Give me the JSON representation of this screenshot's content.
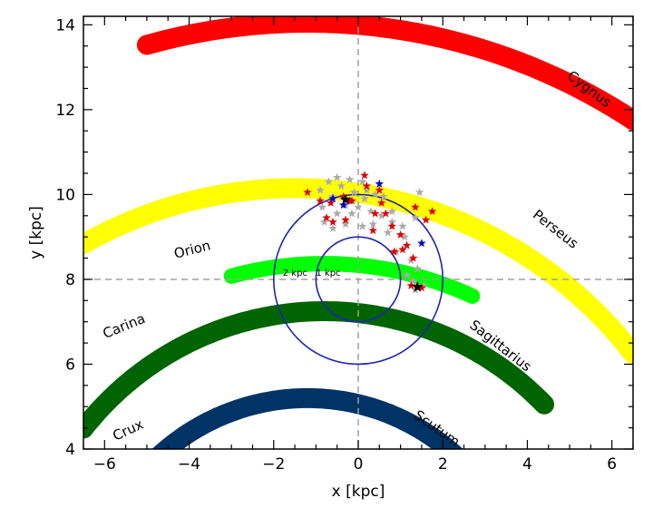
{
  "chart_data": {
    "type": "scatter",
    "xlabel": "x [kpc]",
    "ylabel": "y [kpc]",
    "xlim": [
      -6.5,
      6.5
    ],
    "ylim": [
      4,
      14.2
    ],
    "xticks": [
      -6,
      -4,
      -2,
      0,
      2,
      4,
      6
    ],
    "yticks": [
      4,
      6,
      8,
      10,
      12,
      14
    ],
    "grid": false,
    "sun": {
      "x": 0,
      "y": 8.0
    },
    "reference_lines": {
      "x": 0,
      "y": 8.0,
      "style": "dashed",
      "color": "#a0a0a0"
    },
    "circles": [
      {
        "label": "1 kpc",
        "radius_kpc": 1,
        "color": "#1f22b4"
      },
      {
        "label": "2 kpc",
        "radius_kpc": 2,
        "color": "#1f22b4"
      }
    ],
    "spiral_arms": [
      {
        "name": "Cygnus",
        "color": "#ff0000",
        "center": [
          -1.2,
          0
        ],
        "radius": 14.05,
        "x_from": -5.0,
        "x_to": 6.5,
        "label_x": 5.4,
        "label_y": 12.4,
        "label_angle": 37
      },
      {
        "name": "Perseus",
        "color": "#ffff00",
        "center": [
          -1.5,
          0
        ],
        "radius": 10.15,
        "x_from": -6.5,
        "x_to": 6.5,
        "label_x": 4.6,
        "label_y": 9.1,
        "label_angle": 38
      },
      {
        "name": "Orion",
        "color": "#00ff00",
        "center": [
          -0.8,
          0
        ],
        "radius": 8.37,
        "x_from": -3.0,
        "x_to": 2.7,
        "label_x": -3.9,
        "label_y": 8.6,
        "label_angle": -14
      },
      {
        "name": "Sagittarius",
        "color": "#006400",
        "center": [
          -0.8,
          0
        ],
        "radius": 7.25,
        "x_from": -6.5,
        "x_to": 4.4,
        "label_x": 3.3,
        "label_y": 6.35,
        "label_angle": 38
      },
      {
        "name": "Carina",
        "color": "#006400",
        "center": [
          -0.8,
          0
        ],
        "radius": 7.25,
        "x_from": -6.5,
        "x_to": 4.4,
        "label_x": -5.5,
        "label_y": 6.8,
        "label_angle": -22,
        "label_only": true
      },
      {
        "name": "Scutum",
        "color": "#003366",
        "center": [
          -1.2,
          0
        ],
        "radius": 5.2,
        "x_from": -4.9,
        "x_to": 2.3,
        "label_x": 1.8,
        "label_y": 4.4,
        "label_angle": 35
      },
      {
        "name": "Crux",
        "color": "#003366",
        "center": [
          -1.2,
          0
        ],
        "radius": 5.2,
        "x_from": -4.9,
        "x_to": 2.3,
        "label_x": -5.4,
        "label_y": 4.35,
        "label_angle": -25,
        "label_only": true
      }
    ],
    "series": [
      {
        "marker": "star",
        "color": "#aaaaaa",
        "points": [
          [
            -0.7,
            10.3
          ],
          [
            -0.5,
            10.4
          ],
          [
            -0.2,
            10.35
          ],
          [
            0.1,
            10.3
          ],
          [
            -0.4,
            10.2
          ],
          [
            -0.9,
            10.1
          ],
          [
            -0.6,
            9.95
          ],
          [
            -0.1,
            10.05
          ],
          [
            0.2,
            10.1
          ],
          [
            0.4,
            10.0
          ],
          [
            0.6,
            9.95
          ],
          [
            -0.3,
            9.75
          ],
          [
            0.0,
            9.7
          ],
          [
            0.3,
            9.6
          ],
          [
            0.55,
            9.5
          ],
          [
            -0.5,
            9.55
          ],
          [
            -0.8,
            9.35
          ],
          [
            -0.3,
            9.3
          ],
          [
            0.1,
            9.25
          ],
          [
            0.35,
            9.3
          ],
          [
            0.8,
            9.35
          ],
          [
            1.05,
            9.25
          ],
          [
            0.8,
            9.6
          ],
          [
            1.35,
            9.45
          ],
          [
            1.45,
            10.05
          ],
          [
            1.1,
            9.0
          ],
          [
            0.7,
            9.1
          ],
          [
            0.9,
            8.65
          ],
          [
            1.25,
            8.45
          ],
          [
            1.4,
            8.25
          ],
          [
            1.15,
            8.1
          ],
          [
            1.3,
            7.95
          ],
          [
            1.55,
            7.85
          ],
          [
            1.35,
            7.75
          ],
          [
            -0.85,
            9.7
          ],
          [
            0.15,
            9.9
          ],
          [
            -0.15,
            9.55
          ],
          [
            -0.6,
            9.2
          ]
        ]
      },
      {
        "marker": "star",
        "color": "#dd0000",
        "points": [
          [
            -1.2,
            10.05
          ],
          [
            -0.9,
            9.85
          ],
          [
            -0.65,
            9.8
          ],
          [
            -0.75,
            9.45
          ],
          [
            -0.6,
            9.35
          ],
          [
            -0.3,
            9.4
          ],
          [
            -0.15,
            9.85
          ],
          [
            0.2,
            10.2
          ],
          [
            0.15,
            10.45
          ],
          [
            -0.2,
            9.85
          ],
          [
            0.55,
            9.8
          ],
          [
            0.4,
            9.55
          ],
          [
            0.65,
            9.55
          ],
          [
            0.35,
            9.15
          ],
          [
            0.8,
            9.25
          ],
          [
            1.35,
            9.7
          ],
          [
            1.6,
            9.4
          ],
          [
            1.75,
            9.6
          ],
          [
            1.0,
            9.05
          ],
          [
            1.15,
            8.8
          ],
          [
            1.05,
            8.7
          ],
          [
            0.85,
            8.65
          ],
          [
            1.3,
            8.5
          ],
          [
            1.25,
            7.85
          ],
          [
            1.5,
            7.8
          ],
          [
            -0.35,
            9.95
          ],
          [
            0.5,
            10.1
          ]
        ]
      },
      {
        "marker": "star",
        "color": "#0000cc",
        "points": [
          [
            -0.6,
            9.9
          ],
          [
            0.5,
            10.25
          ],
          [
            -0.35,
            9.75
          ],
          [
            1.5,
            8.85
          ]
        ]
      },
      {
        "marker": "star",
        "color": "#000000",
        "points": [
          [
            -0.3,
            9.88
          ],
          [
            1.4,
            7.82
          ]
        ]
      }
    ]
  }
}
